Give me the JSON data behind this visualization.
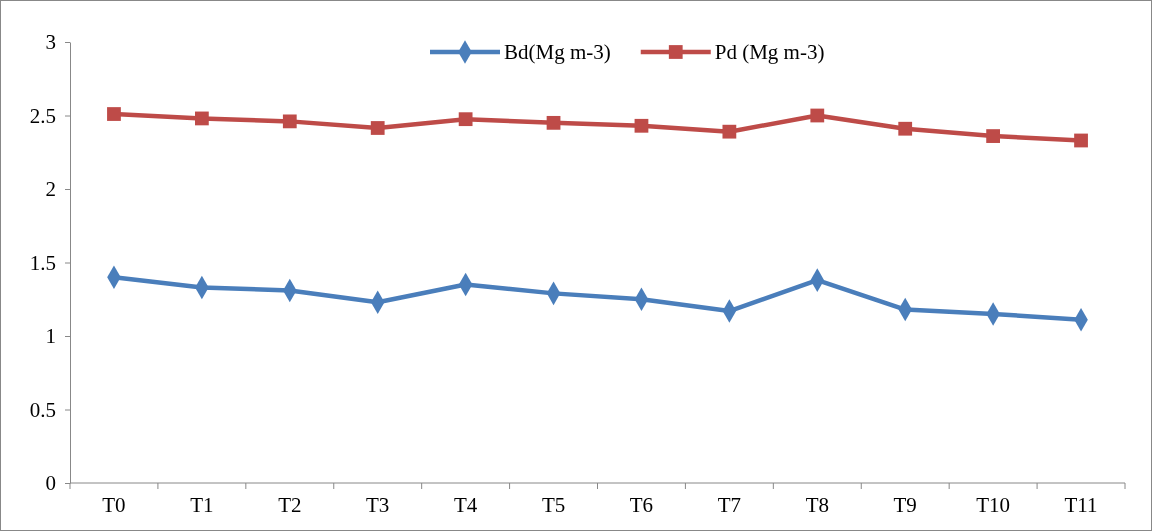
{
  "chart_data": {
    "type": "line",
    "categories": [
      "T0",
      "T1",
      "T2",
      "T3",
      "T4",
      "T5",
      "T6",
      "T7",
      "T8",
      "T9",
      "T10",
      "T11"
    ],
    "series": [
      {
        "name": "Bd(Mg m-3)",
        "color": "#4a7ebb",
        "marker": "diamond",
        "values": [
          1.4,
          1.33,
          1.31,
          1.23,
          1.35,
          1.29,
          1.25,
          1.17,
          1.38,
          1.18,
          1.15,
          1.11
        ]
      },
      {
        "name": "Pd (Mg m-3)",
        "color": "#be4b48",
        "marker": "square",
        "values": [
          2.51,
          2.48,
          2.46,
          2.415,
          2.475,
          2.45,
          2.43,
          2.39,
          2.5,
          2.41,
          2.36,
          2.33
        ]
      }
    ],
    "ylim": [
      0,
      3
    ],
    "yticks": [
      0,
      0.5,
      1,
      1.5,
      2,
      2.5,
      3
    ],
    "grid": false,
    "legend": "top",
    "line_style": "solid"
  }
}
